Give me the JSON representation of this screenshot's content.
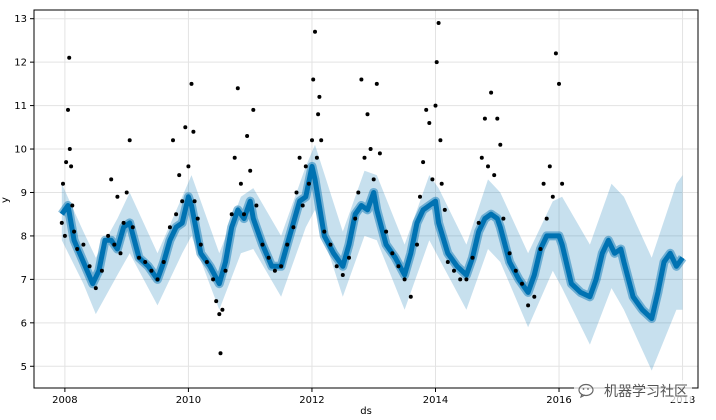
{
  "chart_data": {
    "type": "line",
    "xlabel": "ds",
    "ylabel": "y",
    "xlim": [
      2007.5,
      2018.25
    ],
    "ylim": [
      4.5,
      13.2
    ],
    "x_ticks": [
      "2008",
      "2010",
      "2012",
      "2014",
      "2016",
      "2018"
    ],
    "y_ticks": [
      "5",
      "6",
      "7",
      "8",
      "9",
      "10",
      "11",
      "12",
      "13"
    ],
    "grid": true,
    "series": [
      {
        "role": "forecast",
        "color": "#0072B2",
        "x": [
          2007.95,
          2008.05,
          2008.15,
          2008.3,
          2008.45,
          2008.55,
          2008.65,
          2008.75,
          2008.85,
          2008.95,
          2009.05,
          2009.2,
          2009.35,
          2009.5,
          2009.6,
          2009.7,
          2009.8,
          2009.9,
          2010.0,
          2010.05,
          2010.2,
          2010.35,
          2010.5,
          2010.6,
          2010.7,
          2010.8,
          2010.9,
          2011.0,
          2011.05,
          2011.2,
          2011.35,
          2011.5,
          2011.6,
          2011.7,
          2011.8,
          2011.9,
          2012.0,
          2012.05,
          2012.2,
          2012.35,
          2012.5,
          2012.6,
          2012.7,
          2012.8,
          2012.9,
          2013.0,
          2013.05,
          2013.2,
          2013.35,
          2013.5,
          2013.6,
          2013.7,
          2013.8,
          2013.9,
          2014.0,
          2014.05,
          2014.2,
          2014.35,
          2014.5,
          2014.6,
          2014.7,
          2014.8,
          2014.9,
          2015.0,
          2015.05,
          2015.2,
          2015.35,
          2015.5,
          2015.6,
          2015.7,
          2015.8,
          2015.9,
          2016.0,
          2016.05,
          2016.2,
          2016.35,
          2016.5,
          2016.6,
          2016.7,
          2016.8,
          2016.9,
          2017.0,
          2017.05,
          2017.2,
          2017.35,
          2017.5,
          2017.6,
          2017.7,
          2017.8,
          2017.9,
          2018.0
        ],
        "y": [
          8.5,
          8.7,
          7.9,
          7.4,
          6.9,
          7.2,
          7.9,
          7.9,
          7.7,
          8.2,
          8.3,
          7.5,
          7.3,
          7.0,
          7.4,
          7.9,
          8.2,
          8.3,
          8.9,
          8.7,
          7.6,
          7.3,
          6.9,
          7.4,
          8.2,
          8.6,
          8.4,
          8.8,
          8.4,
          7.8,
          7.3,
          7.3,
          7.8,
          8.3,
          8.8,
          8.9,
          9.6,
          9.3,
          8.0,
          7.6,
          7.3,
          7.8,
          8.5,
          8.7,
          8.6,
          9.0,
          8.6,
          7.8,
          7.5,
          7.1,
          7.6,
          8.3,
          8.6,
          8.7,
          8.8,
          8.3,
          7.6,
          7.3,
          7.1,
          7.5,
          8.1,
          8.4,
          8.5,
          8.4,
          8.2,
          7.4,
          7.0,
          6.7,
          7.1,
          7.7,
          8.0,
          8.0,
          8.0,
          7.8,
          6.9,
          6.7,
          6.6,
          7.0,
          7.6,
          7.9,
          7.6,
          7.7,
          7.4,
          6.6,
          6.3,
          6.1,
          6.7,
          7.4,
          7.6,
          7.3,
          7.5
        ]
      },
      {
        "role": "uncertainty-interval",
        "color": "#0072B2",
        "x": [
          2007.95,
          2008.3,
          2008.5,
          2008.85,
          2009.05,
          2009.5,
          2009.9,
          2010.05,
          2010.5,
          2010.85,
          2011.05,
          2011.5,
          2011.9,
          2012.05,
          2012.5,
          2012.85,
          2013.05,
          2013.5,
          2013.9,
          2014.05,
          2014.5,
          2014.85,
          2015.05,
          2015.5,
          2015.9,
          2016.05,
          2016.5,
          2016.85,
          2017.05,
          2017.5,
          2017.9,
          2018.0
        ],
        "lower": [
          7.9,
          6.9,
          6.2,
          7.1,
          7.6,
          6.4,
          7.6,
          8.0,
          6.3,
          7.6,
          7.7,
          6.6,
          8.2,
          8.6,
          6.6,
          8.0,
          7.9,
          6.3,
          7.9,
          7.5,
          6.3,
          7.7,
          7.4,
          5.9,
          7.2,
          6.8,
          5.5,
          6.8,
          6.3,
          4.9,
          6.3,
          6.3
        ],
        "upper": [
          9.2,
          8.1,
          7.5,
          8.4,
          9.0,
          7.6,
          8.9,
          9.4,
          7.6,
          8.9,
          9.1,
          8.0,
          9.6,
          10.1,
          8.1,
          9.5,
          9.4,
          7.8,
          9.4,
          9.1,
          7.8,
          9.3,
          9.0,
          7.6,
          8.8,
          8.9,
          7.8,
          9.2,
          8.9,
          7.5,
          9.2,
          9.4
        ]
      },
      {
        "role": "observed",
        "color": "#000000",
        "x": [
          2007.95,
          2007.97,
          2008.0,
          2008.02,
          2008.05,
          2008.07,
          2008.08,
          2008.1,
          2008.12,
          2008.15,
          2008.2,
          2008.3,
          2008.4,
          2008.5,
          2008.6,
          2008.7,
          2008.75,
          2008.8,
          2008.85,
          2008.9,
          2008.95,
          2009.0,
          2009.05,
          2009.1,
          2009.2,
          2009.3,
          2009.4,
          2009.5,
          2009.6,
          2009.7,
          2009.75,
          2009.8,
          2009.85,
          2009.9,
          2009.95,
          2010.0,
          2010.05,
          2010.08,
          2010.1,
          2010.15,
          2010.2,
          2010.3,
          2010.4,
          2010.45,
          2010.5,
          2010.52,
          2010.55,
          2010.6,
          2010.7,
          2010.75,
          2010.8,
          2010.85,
          2010.9,
          2010.95,
          2011.0,
          2011.05,
          2011.1,
          2011.2,
          2011.3,
          2011.4,
          2011.5,
          2011.6,
          2011.7,
          2011.75,
          2011.8,
          2011.85,
          2011.9,
          2011.95,
          2012.0,
          2012.02,
          2012.05,
          2012.08,
          2012.1,
          2012.12,
          2012.15,
          2012.2,
          2012.3,
          2012.4,
          2012.5,
          2012.6,
          2012.7,
          2012.75,
          2012.8,
          2012.85,
          2012.9,
          2012.95,
          2013.0,
          2013.05,
          2013.1,
          2013.2,
          2013.3,
          2013.4,
          2013.5,
          2013.6,
          2013.7,
          2013.75,
          2013.8,
          2013.85,
          2013.9,
          2013.95,
          2014.0,
          2014.02,
          2014.05,
          2014.08,
          2014.1,
          2014.15,
          2014.2,
          2014.3,
          2014.4,
          2014.5,
          2014.6,
          2014.7,
          2014.75,
          2014.8,
          2014.85,
          2014.9,
          2014.95,
          2015.0,
          2015.05,
          2015.1,
          2015.2,
          2015.3,
          2015.4,
          2015.5,
          2015.6,
          2015.7,
          2015.75,
          2015.8,
          2015.85,
          2015.9,
          2015.95,
          2016.0,
          2016.05
        ],
        "y": [
          8.3,
          9.2,
          8.0,
          9.7,
          10.9,
          12.1,
          10.0,
          9.6,
          8.7,
          8.1,
          7.7,
          7.8,
          7.3,
          6.8,
          7.2,
          8.0,
          9.3,
          7.8,
          8.9,
          7.6,
          8.3,
          9.0,
          10.2,
          8.2,
          7.5,
          7.4,
          7.2,
          7.0,
          7.4,
          8.2,
          10.2,
          8.5,
          9.4,
          8.8,
          10.5,
          9.6,
          11.5,
          10.4,
          8.8,
          8.4,
          7.8,
          7.4,
          7.0,
          6.5,
          6.2,
          5.3,
          6.3,
          7.2,
          8.5,
          9.8,
          11.4,
          9.2,
          8.5,
          10.3,
          9.5,
          10.9,
          8.7,
          7.8,
          7.5,
          7.2,
          7.3,
          7.8,
          8.2,
          9.0,
          9.8,
          8.7,
          9.6,
          9.2,
          10.2,
          11.6,
          12.7,
          9.8,
          10.8,
          11.2,
          10.2,
          8.1,
          7.8,
          7.3,
          7.1,
          7.5,
          8.4,
          9.0,
          11.6,
          9.8,
          10.8,
          10.0,
          9.3,
          11.5,
          9.9,
          8.1,
          7.6,
          7.3,
          7.0,
          6.6,
          7.8,
          8.9,
          9.7,
          10.9,
          10.6,
          9.3,
          11.0,
          12.0,
          12.9,
          10.2,
          9.2,
          8.6,
          7.4,
          7.2,
          7.0,
          7.0,
          7.5,
          8.3,
          9.8,
          10.7,
          9.6,
          11.3,
          9.4,
          10.7,
          10.1,
          8.4,
          7.6,
          7.2,
          6.9,
          6.4,
          6.6,
          7.7,
          9.2,
          8.4,
          9.6,
          8.9,
          12.2,
          11.5,
          9.2
        ]
      }
    ]
  },
  "watermark": {
    "text": "机器学习社区",
    "icon": "wechat-official-account-icon"
  }
}
